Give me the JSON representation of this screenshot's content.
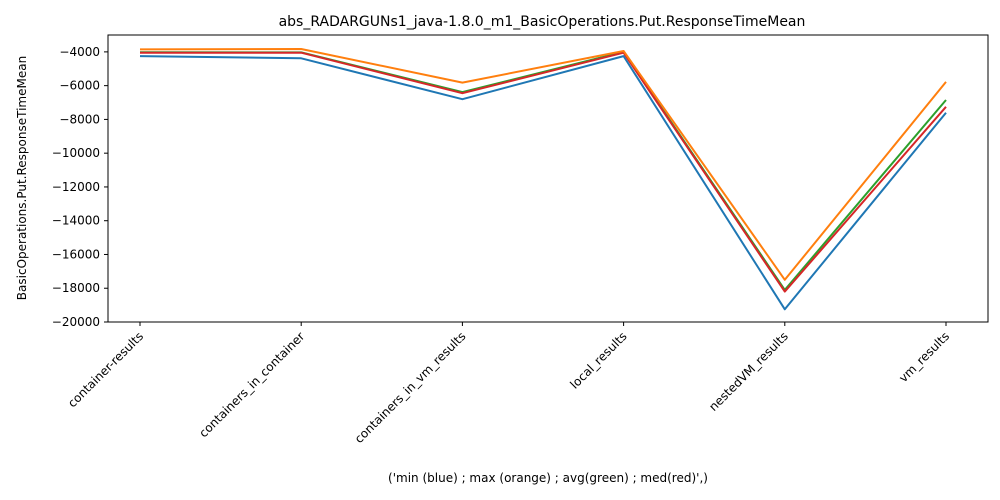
{
  "chart_data": {
    "type": "line",
    "title": "abs_RADARGUNs1_java-1.8.0_m1_BasicOperations.Put.ResponseTimeMean",
    "xlabel": "('min (blue) ; max (orange) ; avg(green) ; med(red)',)",
    "ylabel": "BasicOperations.Put.ResponseTimeMean",
    "categories": [
      "container-results",
      "containers_in_container",
      "containers_in_vm_results",
      "local_results",
      "nestedVM_results",
      "vm_results"
    ],
    "ylim": [
      -20000,
      -3000
    ],
    "yticks": [
      -20000,
      -18000,
      -16000,
      -14000,
      -12000,
      -10000,
      -8000,
      -6000,
      -4000
    ],
    "grid": false,
    "series": [
      {
        "color": "#1f77b4",
        "values": [
          -4250,
          -4380,
          -6800,
          -4250,
          -19250,
          -7600
        ]
      },
      {
        "color": "#2ca02c",
        "values": [
          -4020,
          -4030,
          -6380,
          -4000,
          -18100,
          -6850
        ]
      },
      {
        "color": "#d62728",
        "values": [
          -4050,
          -4050,
          -6450,
          -4050,
          -18200,
          -7250
        ]
      },
      {
        "color": "#ff7f0e",
        "values": [
          -3850,
          -3830,
          -5820,
          -3950,
          -17500,
          -5780
        ]
      }
    ]
  }
}
